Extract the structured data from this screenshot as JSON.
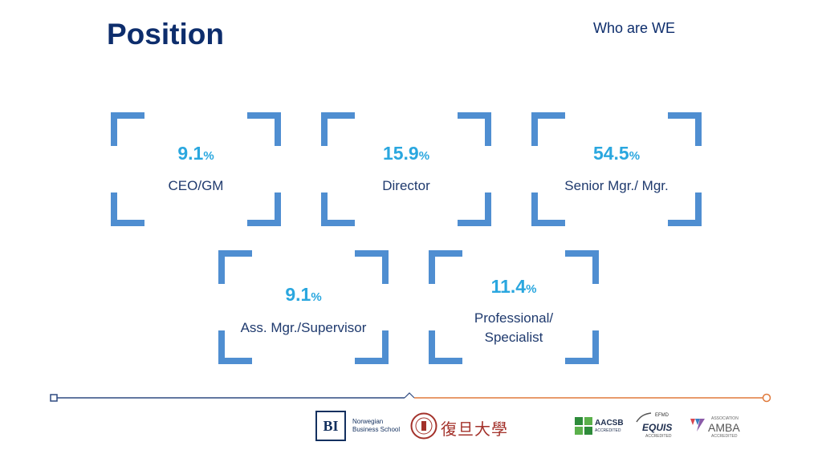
{
  "header": {
    "title": "Position",
    "section": "Who are WE"
  },
  "unit": "%",
  "cards": [
    {
      "value": "9.1",
      "label": "CEO/GM"
    },
    {
      "value": "15.9",
      "label": "Director"
    },
    {
      "value": "54.5",
      "label": "Senior Mgr./ Mgr."
    },
    {
      "value": "9.1",
      "label": "Ass. Mgr./Supervisor"
    },
    {
      "value": "11.4",
      "label_line1": "Professional/",
      "label_line2": "Specialist"
    }
  ],
  "logos": {
    "bi_mark": "BI",
    "bi_line1": "Norwegian",
    "bi_line2": "Business School",
    "fudan": "復旦大學",
    "aacsb": "AACSB",
    "aacsb_sub": "ACCREDITED",
    "efmd": "EFMD",
    "equis": "EQUIS",
    "equis_sub": "ACCREDITED",
    "amba_top": "ASSOCIATION",
    "amba": "AMBA",
    "amba_sub": "ACCREDITED"
  },
  "colors": {
    "accent": "#2aa7df",
    "bracket": "#4f8ed1",
    "navy": "#0d2d6c",
    "timeline_left": "#2f4a80",
    "timeline_right": "#e07a3c"
  }
}
